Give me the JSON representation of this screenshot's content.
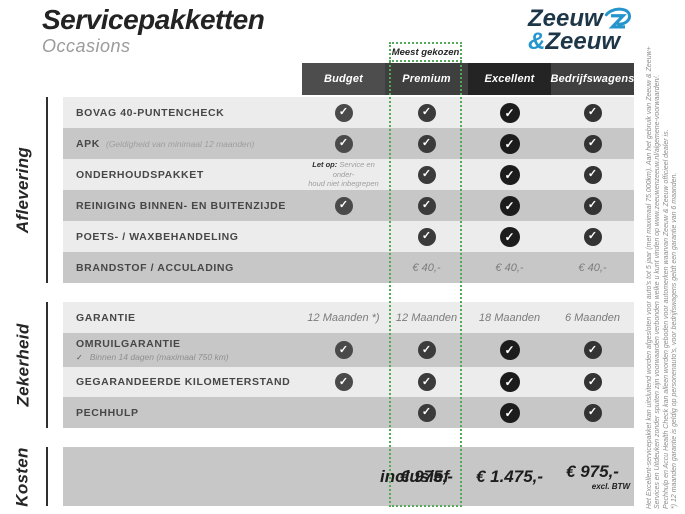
{
  "header": {
    "title": "Servicepakketten",
    "subtitle": "Occasions"
  },
  "logo": {
    "word1": "Zeeuw",
    "amp": "&",
    "word2": "Zeeuw"
  },
  "badge": "Meest gekozen",
  "columns": [
    {
      "id": "budget",
      "label": "Budget",
      "headerBg": "#4d4d4d",
      "checkBg": "#4a4a4a",
      "highlight": false
    },
    {
      "id": "premium",
      "label": "Premium",
      "headerBg": "#3f3f3f",
      "checkBg": "#3b3b3b",
      "highlight": true
    },
    {
      "id": "excellent",
      "label": "Excellent",
      "headerBg": "#242424",
      "checkBg": "#1c1c1c",
      "highlight": false
    },
    {
      "id": "bedrijfswagens",
      "label": "Bedrijfswagens",
      "headerBg": "#404040",
      "checkBg": "#333333",
      "highlight": false
    }
  ],
  "sections": [
    {
      "label": "Aflevering",
      "rows": [
        {
          "label": "BOVAG 40-PUNTENCHECK",
          "cells": [
            {
              "type": "check"
            },
            {
              "type": "check"
            },
            {
              "type": "check"
            },
            {
              "type": "check"
            }
          ]
        },
        {
          "label": "APK",
          "labelNote": "(Geldigheid van minimaal 12 maanden)",
          "cells": [
            {
              "type": "check"
            },
            {
              "type": "check"
            },
            {
              "type": "check"
            },
            {
              "type": "check"
            }
          ]
        },
        {
          "label": "ONDERHOUDSPAKKET",
          "cells": [
            {
              "type": "note",
              "lead": "Let op:",
              "lines": [
                "Service en onder-",
                "houd niet inbegrepen"
              ]
            },
            {
              "type": "check"
            },
            {
              "type": "check"
            },
            {
              "type": "check"
            }
          ]
        },
        {
          "label": "REINIGING BINNEN- EN BUITENZIJDE",
          "cells": [
            {
              "type": "check"
            },
            {
              "type": "check"
            },
            {
              "type": "check"
            },
            {
              "type": "check"
            }
          ]
        },
        {
          "label": "POETS- / WAXBEHANDELING",
          "cells": [
            {
              "type": "empty"
            },
            {
              "type": "check"
            },
            {
              "type": "check"
            },
            {
              "type": "check"
            }
          ]
        },
        {
          "label": "BRANDSTOF / ACCULADING",
          "cells": [
            {
              "type": "empty"
            },
            {
              "type": "text",
              "value": "€ 40,-"
            },
            {
              "type": "text",
              "value": "€ 40,-"
            },
            {
              "type": "text",
              "value": "€ 40,-"
            }
          ]
        }
      ]
    },
    {
      "label": "Zekerheid",
      "rows": [
        {
          "label": "GARANTIE",
          "cells": [
            {
              "type": "text",
              "value": "12 Maanden *)"
            },
            {
              "type": "text",
              "value": "12 Maanden"
            },
            {
              "type": "text",
              "value": "18 Maanden"
            },
            {
              "type": "text",
              "value": "6 Maanden"
            }
          ]
        },
        {
          "label": "OMRUILGARANTIE",
          "subNote": "Binnen 14 dagen (maximaal 750 km)",
          "cells": [
            {
              "type": "check"
            },
            {
              "type": "check"
            },
            {
              "type": "check"
            },
            {
              "type": "check"
            }
          ]
        },
        {
          "label": "GEGARANDEERDE KILOMETERSTAND",
          "cells": [
            {
              "type": "check"
            },
            {
              "type": "check"
            },
            {
              "type": "check"
            },
            {
              "type": "check"
            }
          ]
        },
        {
          "label": "PECHHULP",
          "cells": [
            {
              "type": "empty"
            },
            {
              "type": "check"
            },
            {
              "type": "check"
            },
            {
              "type": "check"
            }
          ]
        }
      ]
    }
  ],
  "kosten": {
    "label": "Kosten",
    "rowLabel": "inclusief",
    "prices": [
      {
        "value": ""
      },
      {
        "value": "€ 975,-"
      },
      {
        "value": "€ 1.475,-"
      },
      {
        "value": "€ 975,-",
        "note": "excl. BTW"
      }
    ]
  },
  "footnotes": [
    "Het Excellent-servicepakket kan uitsluitend worden afgesloten voor auto's tot 5 jaar (met maximaal 75.000km). Aan het gebruik van Zeeuw & Zeeuw+",
    "Services en Uitdeuken zonder spuiten zijn voorwaarden verbonden welke u kunt vinden op www.zeeuwenzeeuw.nl/algemene-voorwaarden/.",
    "Pechhulp en Accu Health Check kan alleen worden geboden voor automerken waarvan Zeeuw & Zeeuw officieel dealer is.",
    "*) 12 maanden garantie is geldig op personenauto's, voor bedrijfswagens geldt een garantie van 6 maanden."
  ],
  "colors": {
    "navy": "#1d3648",
    "blue": "#2496cd",
    "highlight_green": "#55a95a",
    "row_light": "#ececec",
    "row_dark": "#c7c7c7",
    "text_dark": "#2e2e2e",
    "text_muted": "#8f8f8f"
  }
}
